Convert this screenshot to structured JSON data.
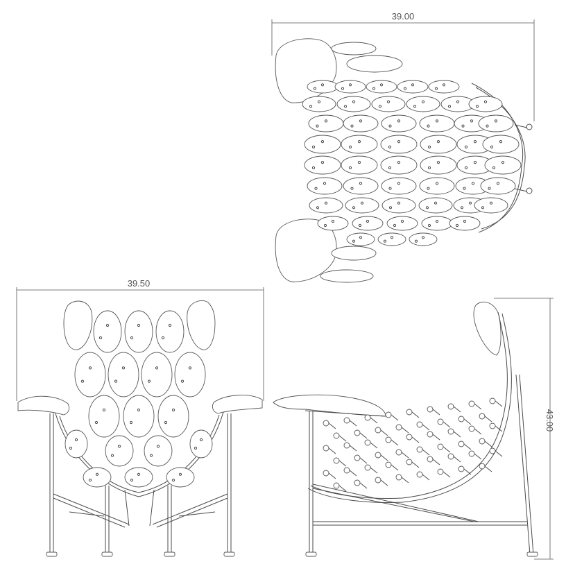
{
  "dimensions": {
    "top_width": "39.00",
    "front_width": "39.50",
    "side_height": "43.00"
  },
  "colors": {
    "line": "#4a4a4a",
    "background": "#ffffff"
  }
}
